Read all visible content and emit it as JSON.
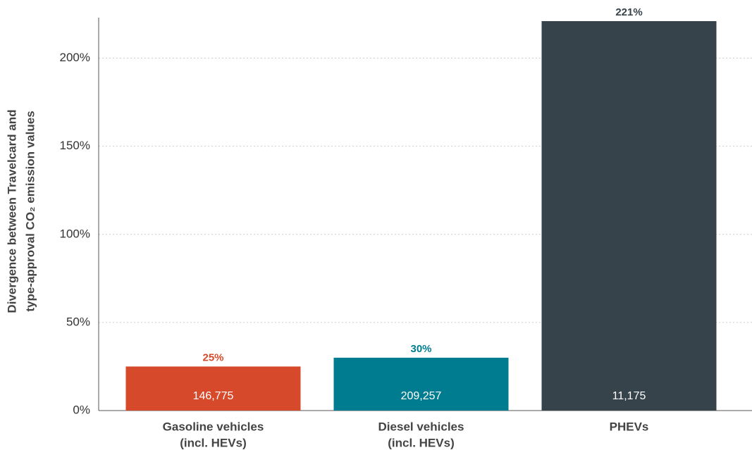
{
  "chart_data": {
    "type": "bar",
    "ylabel": [
      "Divergence between Travelcard and",
      "type-approval CO₂ emission values"
    ],
    "categories": [
      [
        "Gasoline vehicles",
        "(incl. HEVs)"
      ],
      [
        "Diesel vehicles",
        "(incl. HEVs)"
      ],
      [
        "PHEVs"
      ]
    ],
    "values": [
      25,
      30,
      221
    ],
    "value_labels": [
      "25%",
      "30%",
      "221%"
    ],
    "bar_notes": [
      "146,775",
      "209,257",
      "11,175"
    ],
    "colors": [
      "#d64a2b",
      "#007c91",
      "#37434b"
    ],
    "value_label_colors": [
      "#d64a2b",
      "#007c91",
      "#37434b"
    ],
    "ylim": [
      0,
      223
    ],
    "yticks": [
      {
        "value": 0,
        "label": "0%"
      },
      {
        "value": 50,
        "label": "50%"
      },
      {
        "value": 100,
        "label": "100%"
      },
      {
        "value": 150,
        "label": "150%"
      },
      {
        "value": 200,
        "label": "200%"
      }
    ],
    "grid": true
  }
}
